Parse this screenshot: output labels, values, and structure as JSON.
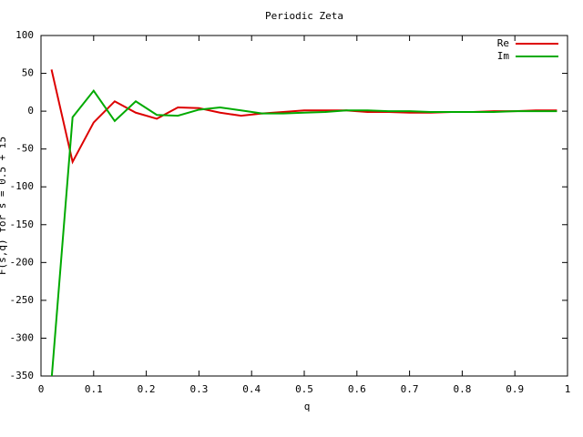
{
  "chart_data": {
    "type": "line",
    "title": "Periodic Zeta",
    "x_label": "q",
    "y_label": "F(s,q) for s = 0.5 + i5",
    "x": [
      0.02,
      0.06,
      0.1,
      0.14,
      0.18,
      0.22,
      0.26,
      0.3,
      0.34,
      0.38,
      0.42,
      0.46,
      0.5,
      0.54,
      0.58,
      0.62,
      0.66,
      0.7,
      0.74,
      0.78,
      0.82,
      0.86,
      0.9,
      0.94,
      0.98
    ],
    "series": [
      {
        "name": "Re",
        "color": "#dd0000",
        "values": [
          55,
          -67,
          -15,
          13,
          -2,
          -10,
          5,
          4,
          -2,
          -6,
          -3,
          -1,
          1,
          1,
          1,
          -1,
          -1,
          -2,
          -2,
          -1,
          -1,
          0,
          0,
          1,
          1
        ]
      },
      {
        "name": "Im",
        "color": "#00aa00",
        "values": [
          -355,
          -8,
          27,
          -13,
          13,
          -5,
          -6,
          2,
          5,
          1,
          -3,
          -3,
          -2,
          -1,
          1,
          1,
          0,
          0,
          -1,
          -1,
          -1,
          -1,
          0,
          0,
          0
        ]
      }
    ],
    "xlim": [
      0,
      1
    ],
    "xticks": [
      0,
      0.1,
      0.2,
      0.3,
      0.4,
      0.5,
      0.6,
      0.7,
      0.8,
      0.9,
      1
    ],
    "ylim": [
      -350,
      100
    ],
    "yticks": [
      -350,
      -300,
      -250,
      -200,
      -150,
      -100,
      -50,
      0,
      50,
      100
    ],
    "grid": false,
    "legend": "top-right"
  }
}
